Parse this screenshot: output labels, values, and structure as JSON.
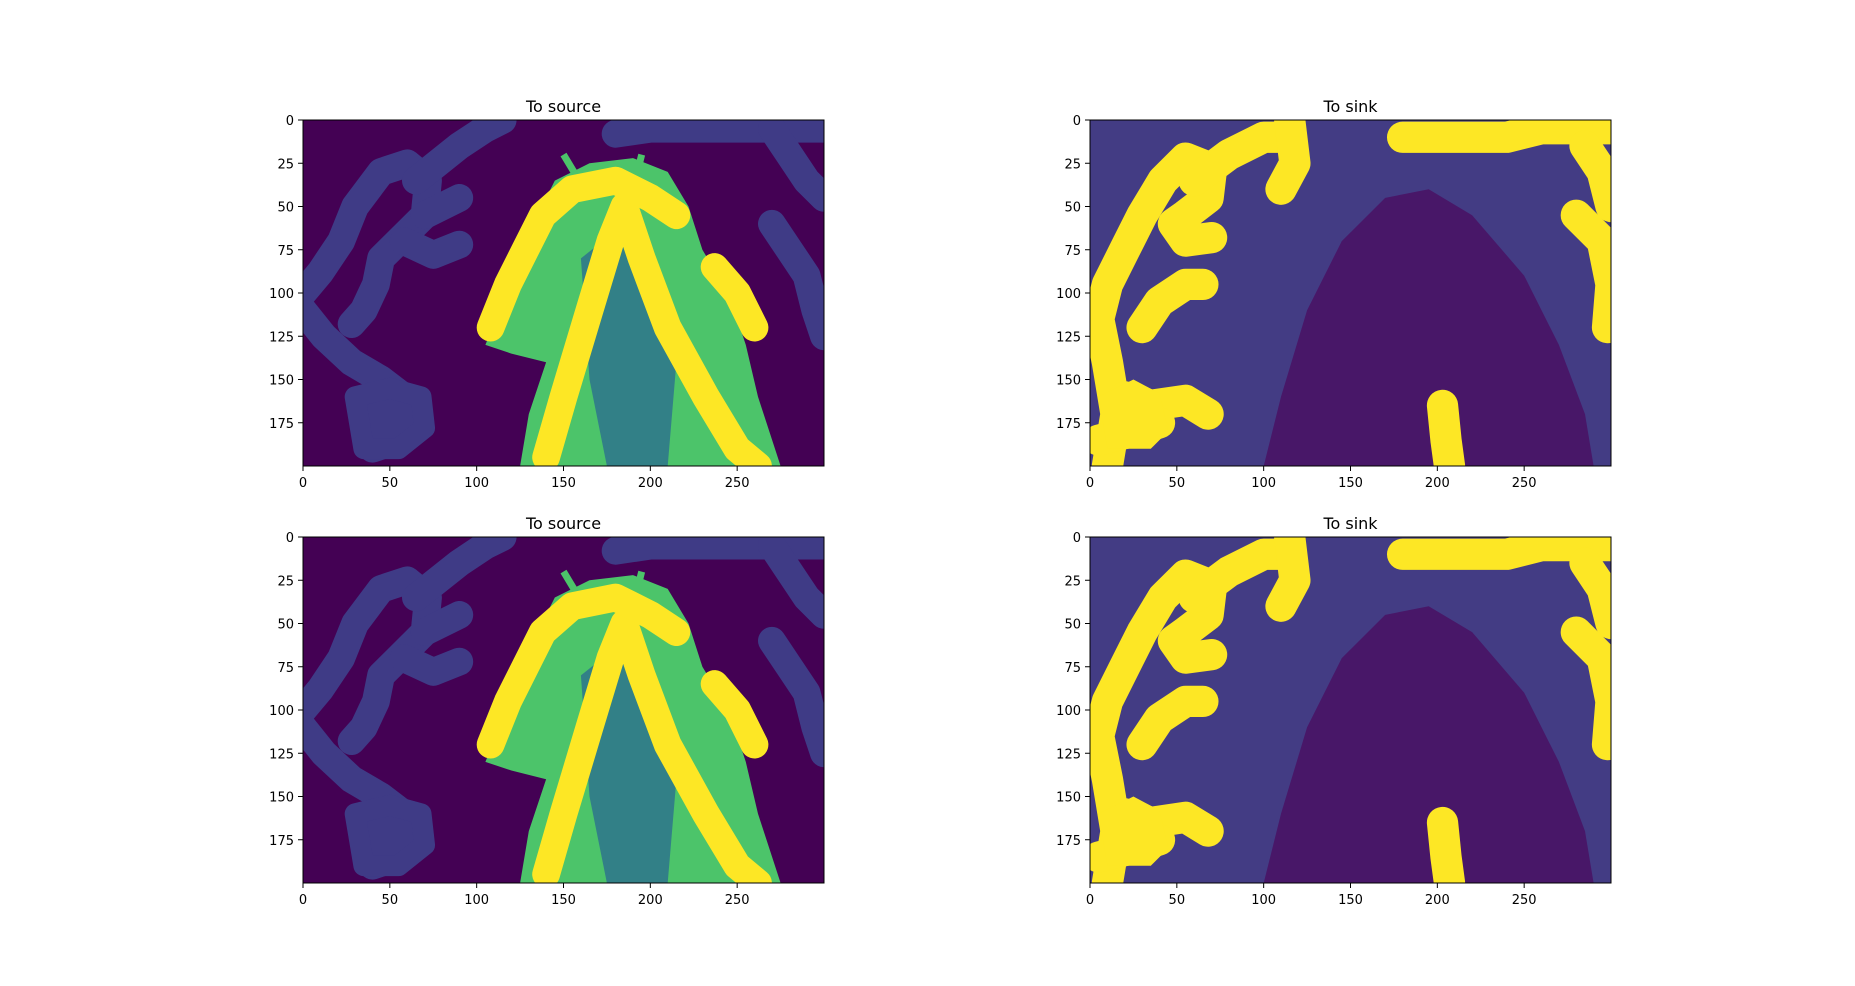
{
  "chart_data": [
    {
      "type": "heatmap",
      "title": "To source",
      "xlim": [
        0,
        300
      ],
      "ylim": [
        200,
        0
      ],
      "xticks": [
        0,
        50,
        100,
        150,
        200,
        250
      ],
      "yticks": [
        0,
        25,
        50,
        75,
        100,
        125,
        150,
        175
      ],
      "colormap": "viridis",
      "colors": {
        "background": "#440154",
        "scribble": "#3f3b86",
        "object": "#4cc46a",
        "object_dark": "#2c6f8e",
        "stroke": "#fde725"
      }
    },
    {
      "type": "heatmap",
      "title": "To sink",
      "xlim": [
        0,
        300
      ],
      "ylim": [
        200,
        0
      ],
      "xticks": [
        0,
        50,
        100,
        150,
        200,
        250
      ],
      "yticks": [
        0,
        25,
        50,
        75,
        100,
        125,
        150,
        175
      ],
      "colormap": "viridis",
      "colors": {
        "background": "#433c84",
        "object": "#481768",
        "stroke": "#fde725"
      }
    },
    {
      "type": "heatmap",
      "title": "To source",
      "xlim": [
        0,
        300
      ],
      "ylim": [
        200,
        0
      ],
      "xticks": [
        0,
        50,
        100,
        150,
        200,
        250
      ],
      "yticks": [
        0,
        25,
        50,
        75,
        100,
        125,
        150,
        175
      ],
      "colormap": "viridis",
      "colors": {
        "background": "#440154",
        "scribble": "#3f3b86",
        "object": "#4cc46a",
        "object_dark": "#2c6f8e",
        "stroke": "#fde725"
      }
    },
    {
      "type": "heatmap",
      "title": "To sink",
      "xlim": [
        0,
        300
      ],
      "ylim": [
        200,
        0
      ],
      "xticks": [
        0,
        50,
        100,
        150,
        200,
        250
      ],
      "yticks": [
        0,
        25,
        50,
        75,
        100,
        125,
        150,
        175
      ],
      "colormap": "viridis",
      "colors": {
        "background": "#433c84",
        "object": "#481768",
        "stroke": "#fde725"
      }
    }
  ]
}
